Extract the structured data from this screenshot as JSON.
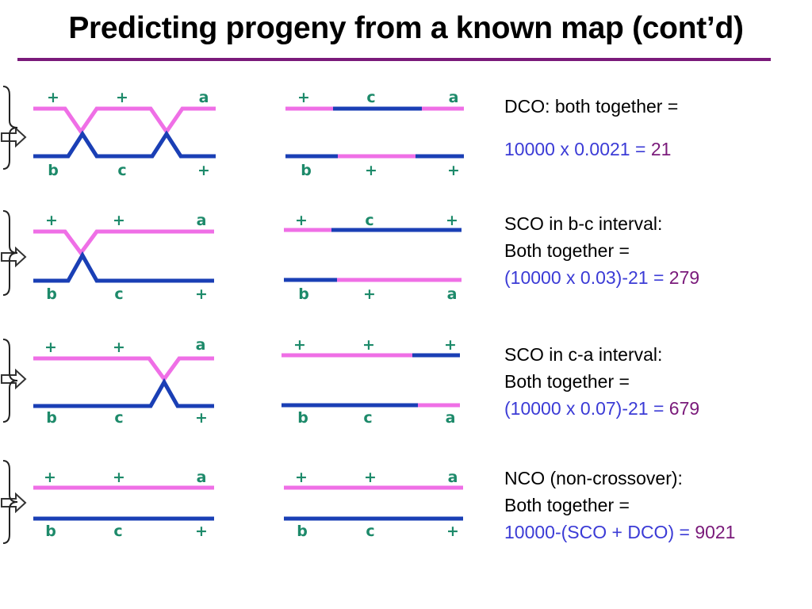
{
  "title": "Predicting progeny from a known map (cont’d)",
  "colors": {
    "pink": "#ef6fe6",
    "blue": "#1a3fb5",
    "green": "#1d8a6a",
    "calc": "#3b3bd6",
    "result": "#7a1a7a",
    "rule": "#7a1a7a"
  },
  "icons": {
    "arrow": "hollow-right-arrow-icon",
    "bracket": "right-curly-brace-icon"
  },
  "panels": [
    {
      "parent_top": [
        "+",
        "+",
        "a"
      ],
      "parent_bottom": [
        "b",
        "c",
        "+"
      ],
      "progeny_top": [
        "+",
        "c",
        "a"
      ],
      "progeny_bottom": [
        "b",
        "+",
        "+"
      ],
      "label": "DCO: both together =",
      "label2": "",
      "calc": "10000 x 0.0021 =",
      "result": "21"
    },
    {
      "parent_top": [
        "+",
        "+",
        "a"
      ],
      "parent_bottom": [
        "b",
        "c",
        "+"
      ],
      "progeny_top": [
        "+",
        "c",
        "+"
      ],
      "progeny_bottom": [
        "b",
        "+",
        "a"
      ],
      "label": "SCO in b-c interval:",
      "label2": "Both together =",
      "calc": "(10000 x 0.03)-21 =",
      "result": "279"
    },
    {
      "parent_top": [
        "+",
        "+",
        "a"
      ],
      "parent_bottom": [
        "b",
        "c",
        "+"
      ],
      "progeny_top": [
        "+",
        "+",
        "+"
      ],
      "progeny_bottom": [
        "b",
        "c",
        "a"
      ],
      "label": "SCO in c-a interval:",
      "label2": "Both together =",
      "calc": "(10000 x 0.07)-21 =",
      "result": "679"
    },
    {
      "parent_top": [
        "+",
        "+",
        "a"
      ],
      "parent_bottom": [
        "b",
        "c",
        "+"
      ],
      "progeny_top": [
        "+",
        "+",
        "a"
      ],
      "progeny_bottom": [
        "b",
        "c",
        "+"
      ],
      "label": "NCO (non-crossover):",
      "label2": "Both together =",
      "calc": "10000-(SCO + DCO) =",
      "result": "9021"
    }
  ]
}
